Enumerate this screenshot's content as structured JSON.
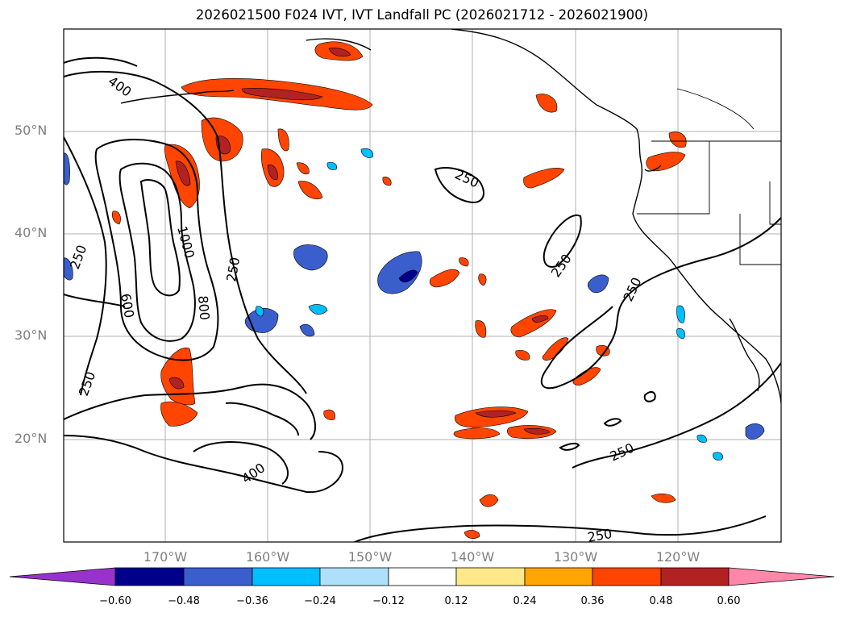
{
  "title": "2026021500 F024 IVT, IVT Landfall PC (2026021712 - 2026021900)",
  "lat_labels": [
    "50°N",
    "40°N",
    "30°N",
    "20°N"
  ],
  "lon_labels": [
    "170°W",
    "160°W",
    "150°W",
    "140°W",
    "130°W",
    "120°W"
  ],
  "contour_labels": [
    "400",
    "250",
    "250",
    "1000",
    "250",
    "600",
    "800",
    "250",
    "250",
    "400",
    "250",
    "250",
    "250"
  ],
  "colorbar": {
    "ticks": [
      "−0.60",
      "−0.48",
      "−0.36",
      "−0.24",
      "−0.12",
      "0.12",
      "0.24",
      "0.36",
      "0.48",
      "0.60"
    ],
    "colors": [
      "#9932cc",
      "#00008b",
      "#3a5fcd",
      "#00bfff",
      "#afe0fa",
      "#ffffff",
      "#ffe88a",
      "#ffa500",
      "#ff4500",
      "#b22222",
      "#ff88aa"
    ]
  }
}
